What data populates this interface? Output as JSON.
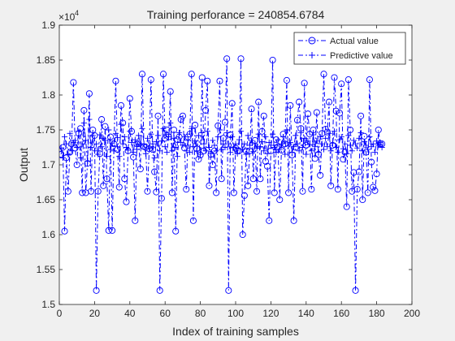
{
  "chart_data": {
    "type": "line",
    "title": "Training perforance = 240854.6784",
    "xlabel": "Index of training samples",
    "ylabel": "Output",
    "exponent_label": "×10",
    "exponent_power": "4",
    "xlim": [
      0,
      200
    ],
    "ylim": [
      15000,
      19000
    ],
    "x_ticks": [
      0,
      20,
      40,
      60,
      80,
      100,
      120,
      140,
      160,
      180,
      200
    ],
    "x_tick_labels": [
      "0",
      "20",
      "40",
      "60",
      "80",
      "100",
      "120",
      "140",
      "160",
      "180",
      "200"
    ],
    "y_ticks": [
      15000,
      15500,
      16000,
      16500,
      17000,
      17500,
      18000,
      18500,
      19000
    ],
    "y_tick_labels": [
      "1.5",
      "1.55",
      "1.6",
      "1.65",
      "1.7",
      "1.75",
      "1.8",
      "1.85",
      "1.9"
    ],
    "grid": false,
    "legend_position": "top-right",
    "series": [
      {
        "name": "Actual value",
        "color": "#0000ff",
        "line_style": "dash-dot",
        "marker": "circle",
        "values": [
          17150,
          17250,
          16050,
          17100,
          16620,
          17180,
          17300,
          18180,
          17240,
          17000,
          17450,
          17520,
          16600,
          17780,
          16600,
          17020,
          18020,
          16620,
          17500,
          17420,
          15200,
          16620,
          17160,
          17650,
          16700,
          17550,
          16800,
          16060,
          17400,
          16060,
          17300,
          18200,
          17220,
          16680,
          17850,
          17600,
          16800,
          16470,
          17200,
          17950,
          17480,
          17110,
          16200,
          17300,
          17300,
          16940,
          18300,
          17260,
          17250,
          16620,
          17230,
          18220,
          17220,
          16900,
          16610,
          17700,
          15200,
          16520,
          18300,
          17380,
          17500,
          17400,
          18050,
          16600,
          17500,
          16050,
          17360,
          17400,
          17650,
          17700,
          17240,
          16650,
          17400,
          17440,
          18300,
          16200,
          17570,
          17230,
          17080,
          17140,
          18250,
          17200,
          17780,
          18200,
          16700,
          17150,
          17000,
          17200,
          16600,
          17560,
          18200,
          16800,
          17380,
          17610,
          18520,
          15200,
          17430,
          17880,
          16600,
          17240,
          17200,
          17200,
          18520,
          16000,
          16560,
          17200,
          16700,
          17200,
          17800,
          16800,
          17350,
          16620,
          17900,
          16800,
          17480,
          17700,
          17050,
          16980,
          16200,
          17200,
          18500,
          16600,
          17360,
          17260,
          16500,
          17210,
          17440,
          17300,
          18210,
          16600,
          17850,
          17140,
          16200,
          17250,
          17640,
          17900,
          17520,
          16620,
          18170,
          17280,
          17730,
          17440,
          16650,
          17500,
          17090,
          17750,
          17150,
          16850,
          17450,
          18300,
          17510,
          17470,
          17900,
          16700,
          17280,
          18250,
          17770,
          16650,
          17740,
          18160,
          17080,
          17180,
          16400,
          18220,
          17500,
          16620,
          16890,
          15200,
          16650,
          16900,
          17700,
          16500,
          17410,
          17180,
          16600,
          18220,
          17040,
          16680,
          16630,
          16870,
          17500,
          17300,
          17300
        ]
      },
      {
        "name": "Predictive value",
        "color": "#0000ff",
        "line_style": "dash-dot",
        "marker": "plus",
        "values": [
          17240,
          17100,
          17400,
          17300,
          17150,
          17450,
          17200,
          17320,
          17350,
          17250,
          17480,
          17100,
          17300,
          17600,
          17350,
          17050,
          17650,
          17250,
          17420,
          17200,
          17300,
          17150,
          17430,
          17260,
          17380,
          17350,
          17120,
          17500,
          17220,
          17310,
          17200,
          17450,
          17390,
          17120,
          17580,
          17300,
          17400,
          17250,
          17210,
          17480,
          17320,
          17180,
          17360,
          17220,
          17420,
          17280,
          17520,
          17300,
          17160,
          17380,
          17240,
          17440,
          17300,
          17100,
          17330,
          17420,
          17200,
          17340,
          17520,
          17260,
          17180,
          17400,
          17600,
          17200,
          17380,
          17250,
          17120,
          17460,
          17320,
          17280,
          17400,
          17200,
          17350,
          17180,
          17520,
          17260,
          17340,
          17200,
          17420,
          17150,
          17460,
          17300,
          17200,
          17480,
          17250,
          17160,
          17350,
          17280,
          17200,
          17400,
          17500,
          17220,
          17300,
          17250,
          17460,
          17300,
          17180,
          17400,
          17250,
          17300,
          17160,
          17360,
          17480,
          17220,
          17300,
          17150,
          17420,
          17280,
          17350,
          17190,
          17300,
          17240,
          17440,
          17260,
          17330,
          17200,
          17400,
          17160,
          17320,
          17280,
          17440,
          17250,
          17180,
          17360,
          17220,
          17300,
          17400,
          17150,
          17500,
          17270,
          17320,
          17180,
          17260,
          17420,
          17300,
          17200,
          17460,
          17250,
          17380,
          17150,
          17340,
          17290,
          17200,
          17430,
          17260,
          17340,
          17180,
          17400,
          17300,
          17220,
          17380,
          17260,
          17450,
          17200,
          17310,
          17480,
          17250,
          17180,
          17360,
          17400,
          17230,
          17300,
          17160,
          17420,
          17280,
          17200,
          17350,
          17300,
          17240,
          17380,
          17460,
          17200,
          17330,
          17280,
          17220,
          17400,
          17260,
          17300,
          17180,
          17340,
          17280,
          17320,
          17250
        ]
      }
    ]
  }
}
